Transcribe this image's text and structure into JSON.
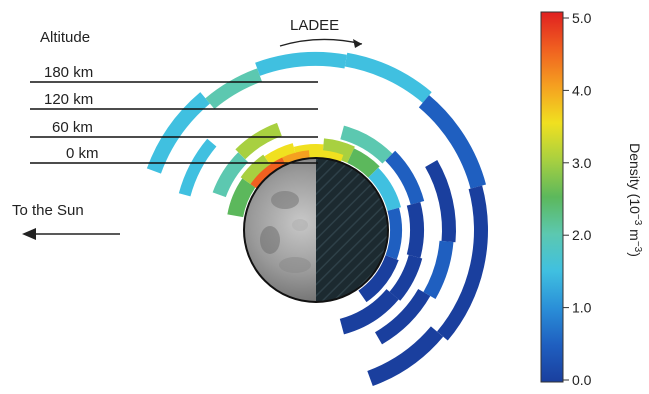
{
  "labels": {
    "altitude_title": "Altitude",
    "spacecraft": "LADEE",
    "sun_direction": "To the Sun",
    "colorbar_title": "Density (10",
    "colorbar_exp1": "−3",
    "colorbar_mid": " m",
    "colorbar_exp2": "−3",
    "colorbar_close": ")"
  },
  "altitude_ticks": [
    "180 km",
    "120 km",
    "60 km",
    "0 km"
  ],
  "colorbar_ticks": [
    "5.0",
    "4.0",
    "3.0",
    "2.0",
    "1.0",
    "0.0"
  ],
  "colors": {
    "scale": [
      "#1a3f9e",
      "#1f5fc0",
      "#2a8fd8",
      "#40c0e0",
      "#5cc8b0",
      "#5cb85c",
      "#a8d040",
      "#f0e020",
      "#f5a020",
      "#f06020",
      "#e02020"
    ]
  }
}
